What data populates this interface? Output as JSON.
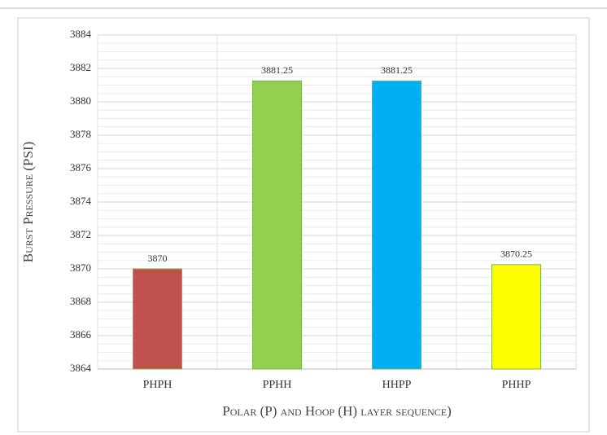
{
  "chart_data": {
    "type": "bar",
    "y_label": "Burst Pressure (PSI)",
    "x_label": "Polar (P) and Hoop (H) layer sequence)",
    "categories": [
      "PHPH",
      "PPHH",
      "HHPP",
      "PHHP"
    ],
    "values": [
      3870,
      3881.25,
      3881.25,
      3870.25
    ],
    "colors": [
      "#c0504d",
      "#92d050",
      "#00b0f0",
      "#ffff00"
    ],
    "ylim": [
      3864,
      3884
    ],
    "yticks": [
      3864,
      3866,
      3868,
      3870,
      3872,
      3874,
      3876,
      3878,
      3880,
      3882,
      3884
    ],
    "grid": true
  }
}
